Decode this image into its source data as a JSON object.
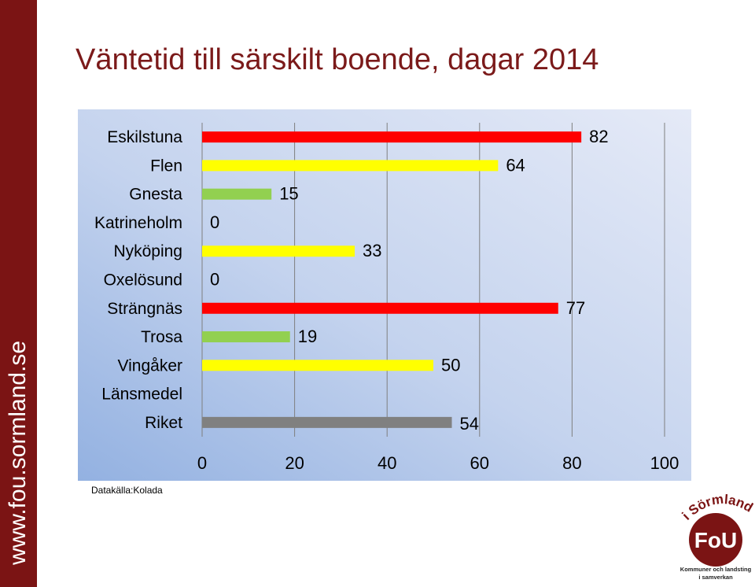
{
  "side_url": "www.fou.sormland.se",
  "title": "Väntetid till särskilt boende, dagar 2014",
  "source": "Datakälla:Kolada",
  "logo": {
    "top_text": "i Sörmland",
    "badge_text": "FoU",
    "tagline_1": "Kommuner och landsting",
    "tagline_2": "i samverkan"
  },
  "colors": {
    "sidebar": "#7b1414",
    "title": "#7b1a1a",
    "red": "#ff0000",
    "yellow": "#ffff00",
    "green": "#92d050",
    "gray": "#808080"
  },
  "chart_data": {
    "type": "bar",
    "orientation": "horizontal",
    "categories": [
      "Eskilstuna",
      "Flen",
      "Gnesta",
      "Katrineholm",
      "Nyköping",
      "Oxelösund",
      "Strängnäs",
      "Trosa",
      "Vingåker",
      "Länsmedel",
      "Riket"
    ],
    "values": [
      82,
      64,
      15,
      0,
      33,
      0,
      77,
      19,
      50,
      null,
      54
    ],
    "data_labels": [
      "82",
      "64",
      "15",
      "0",
      "33",
      "0",
      "77",
      "19",
      "50",
      "",
      "54"
    ],
    "bar_colors": [
      "#ff0000",
      "#ffff00",
      "#92d050",
      "#ff0000",
      "#ffff00",
      "#92d050",
      "#ff0000",
      "#92d050",
      "#ffff00",
      "#808080",
      "#808080"
    ],
    "xlim": [
      0,
      100
    ],
    "xticks": [
      0,
      20,
      40,
      60,
      80,
      100
    ],
    "grid": true
  }
}
